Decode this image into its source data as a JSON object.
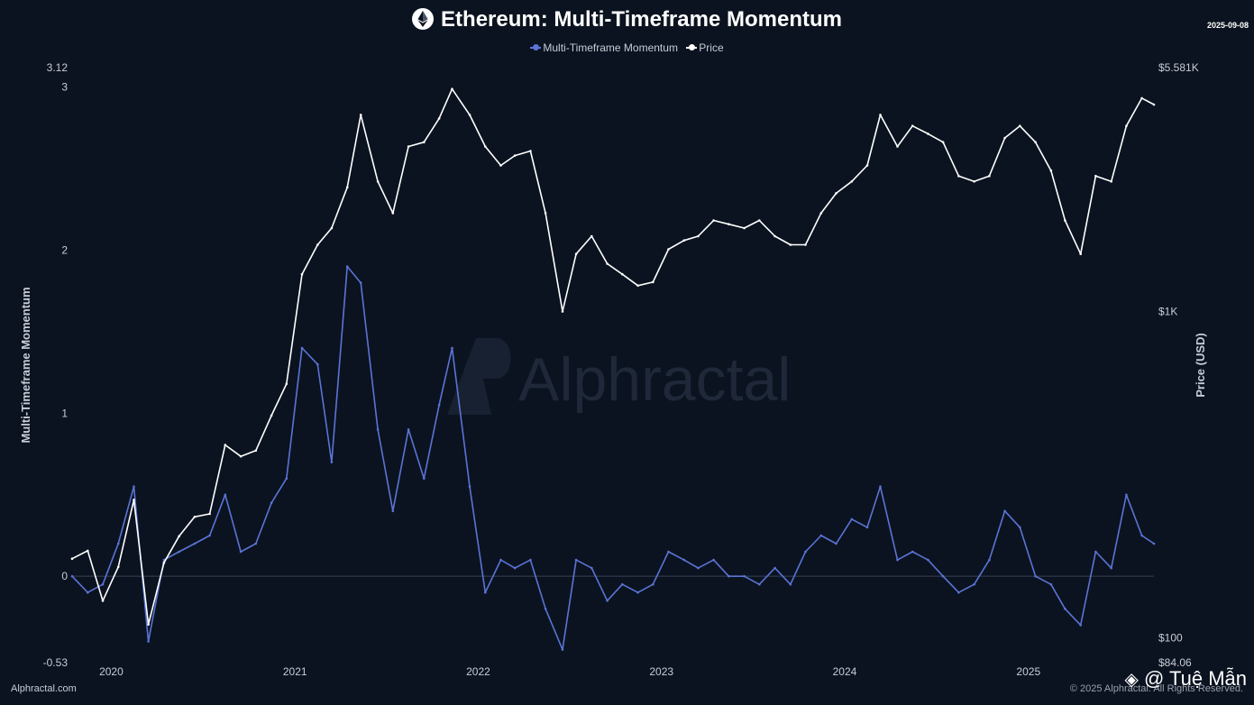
{
  "title": "Ethereum: Multi-Timeframe Momentum",
  "date_stamp": "2025-09-08",
  "footer_left": "Alphractal.com",
  "footer_right": "© 2025 Alphractal. All Rights Reserved.",
  "watermark": "Alphractal",
  "overlay_handle": "@ Tuệ Mẫn",
  "colors": {
    "background": "#0b1320",
    "momentum": "#5b74d6",
    "price": "#ffffff",
    "zero_line": "#3a4254"
  },
  "icons": {
    "title": "ethereum-logo-icon",
    "overlay": "binance-logo-icon"
  },
  "chart_data": {
    "type": "line",
    "legend_position": "top-center",
    "grid": false,
    "xlabel": "",
    "x_tick_labels": [
      "2020",
      "2021",
      "2022",
      "2023",
      "2024",
      "2025"
    ],
    "x_range": [
      "2019-10-15",
      "2025-09-08"
    ],
    "y_left": {
      "label": "Multi-Timeframe Momentum",
      "range": [
        -0.53,
        3.12
      ],
      "tick_labels": [
        "3.12",
        "3",
        "2",
        "1",
        "0",
        "-0.53"
      ],
      "tick_values": [
        3.12,
        3,
        2,
        1,
        0,
        -0.53
      ]
    },
    "y_right": {
      "label": "Price (USD)",
      "scale": "log",
      "range": [
        84.06,
        5581
      ],
      "tick_labels": [
        "$5.581K",
        "$1K",
        "$100",
        "$84.06"
      ],
      "tick_values": [
        5581,
        1000,
        100,
        84.06
      ]
    },
    "series": [
      {
        "name": "Multi-Timeframe Momentum",
        "axis": "left",
        "x": [
          "2019-10-15",
          "2019-11-15",
          "2019-12-15",
          "2020-01-15",
          "2020-02-15",
          "2020-03-15",
          "2020-04-15",
          "2020-05-15",
          "2020-06-15",
          "2020-07-15",
          "2020-08-15",
          "2020-09-15",
          "2020-10-15",
          "2020-11-15",
          "2020-12-15",
          "2021-01-15",
          "2021-02-15",
          "2021-03-15",
          "2021-04-15",
          "2021-05-12",
          "2021-06-15",
          "2021-07-15",
          "2021-08-15",
          "2021-09-15",
          "2021-10-15",
          "2021-11-10",
          "2021-12-15",
          "2022-01-15",
          "2022-02-15",
          "2022-03-15",
          "2022-04-15",
          "2022-05-15",
          "2022-06-18",
          "2022-07-15",
          "2022-08-15",
          "2022-09-15",
          "2022-10-15",
          "2022-11-15",
          "2022-12-15",
          "2023-01-15",
          "2023-02-15",
          "2023-03-15",
          "2023-04-15",
          "2023-05-15",
          "2023-06-15",
          "2023-07-15",
          "2023-08-15",
          "2023-09-15",
          "2023-10-15",
          "2023-11-15",
          "2023-12-15",
          "2024-01-15",
          "2024-02-15",
          "2024-03-12",
          "2024-04-15",
          "2024-05-15",
          "2024-06-15",
          "2024-07-15",
          "2024-08-15",
          "2024-09-15",
          "2024-10-15",
          "2024-11-15",
          "2024-12-15",
          "2025-01-15",
          "2025-02-15",
          "2025-03-15",
          "2025-04-15",
          "2025-05-15",
          "2025-06-15",
          "2025-07-15",
          "2025-08-15",
          "2025-09-08"
        ],
        "y": [
          0.0,
          -0.1,
          -0.05,
          0.2,
          0.55,
          -0.4,
          0.1,
          0.15,
          0.2,
          0.25,
          0.5,
          0.15,
          0.2,
          0.45,
          0.6,
          1.4,
          1.3,
          0.7,
          1.9,
          1.8,
          0.9,
          0.4,
          0.9,
          0.6,
          1.05,
          1.4,
          0.55,
          -0.1,
          0.1,
          0.05,
          0.1,
          -0.2,
          -0.45,
          0.1,
          0.05,
          -0.15,
          -0.05,
          -0.1,
          -0.05,
          0.15,
          0.1,
          0.05,
          0.1,
          0.0,
          0.0,
          -0.05,
          0.05,
          -0.05,
          0.15,
          0.25,
          0.2,
          0.35,
          0.3,
          0.55,
          0.1,
          0.15,
          0.1,
          0.0,
          -0.1,
          -0.05,
          0.1,
          0.4,
          0.3,
          0.0,
          -0.05,
          -0.2,
          -0.3,
          0.15,
          0.05,
          0.5,
          0.25,
          0.2
        ]
      },
      {
        "name": "Price",
        "axis": "right",
        "x": [
          "2019-10-15",
          "2019-11-15",
          "2019-12-15",
          "2020-01-15",
          "2020-02-15",
          "2020-03-15",
          "2020-04-15",
          "2020-05-15",
          "2020-06-15",
          "2020-07-15",
          "2020-08-15",
          "2020-09-15",
          "2020-10-15",
          "2020-11-15",
          "2020-12-15",
          "2021-01-15",
          "2021-02-15",
          "2021-03-15",
          "2021-04-15",
          "2021-05-12",
          "2021-06-15",
          "2021-07-15",
          "2021-08-15",
          "2021-09-15",
          "2021-10-15",
          "2021-11-10",
          "2021-12-15",
          "2022-01-15",
          "2022-02-15",
          "2022-03-15",
          "2022-04-15",
          "2022-05-15",
          "2022-06-18",
          "2022-07-15",
          "2022-08-15",
          "2022-09-15",
          "2022-10-15",
          "2022-11-15",
          "2022-12-15",
          "2023-01-15",
          "2023-02-15",
          "2023-03-15",
          "2023-04-15",
          "2023-05-15",
          "2023-06-15",
          "2023-07-15",
          "2023-08-15",
          "2023-09-15",
          "2023-10-15",
          "2023-11-15",
          "2023-12-15",
          "2024-01-15",
          "2024-02-15",
          "2024-03-12",
          "2024-04-15",
          "2024-05-15",
          "2024-06-15",
          "2024-07-15",
          "2024-08-15",
          "2024-09-15",
          "2024-10-15",
          "2024-11-15",
          "2024-12-15",
          "2025-01-15",
          "2025-02-15",
          "2025-03-15",
          "2025-04-15",
          "2025-05-15",
          "2025-06-15",
          "2025-07-15",
          "2025-08-15",
          "2025-09-08"
        ],
        "y": [
          175,
          185,
          130,
          165,
          265,
          110,
          170,
          205,
          235,
          240,
          390,
          360,
          375,
          480,
          600,
          1300,
          1600,
          1800,
          2400,
          4000,
          2500,
          2000,
          3200,
          3300,
          3900,
          4800,
          4000,
          3200,
          2800,
          3000,
          3100,
          2000,
          1000,
          1500,
          1700,
          1400,
          1300,
          1200,
          1230,
          1550,
          1650,
          1700,
          1900,
          1850,
          1800,
          1900,
          1700,
          1600,
          1600,
          2000,
          2300,
          2500,
          2800,
          4000,
          3200,
          3700,
          3500,
          3300,
          2600,
          2500,
          2600,
          3400,
          3700,
          3300,
          2700,
          1900,
          1500,
          2600,
          2500,
          3700,
          4500,
          4300
        ]
      }
    ]
  }
}
